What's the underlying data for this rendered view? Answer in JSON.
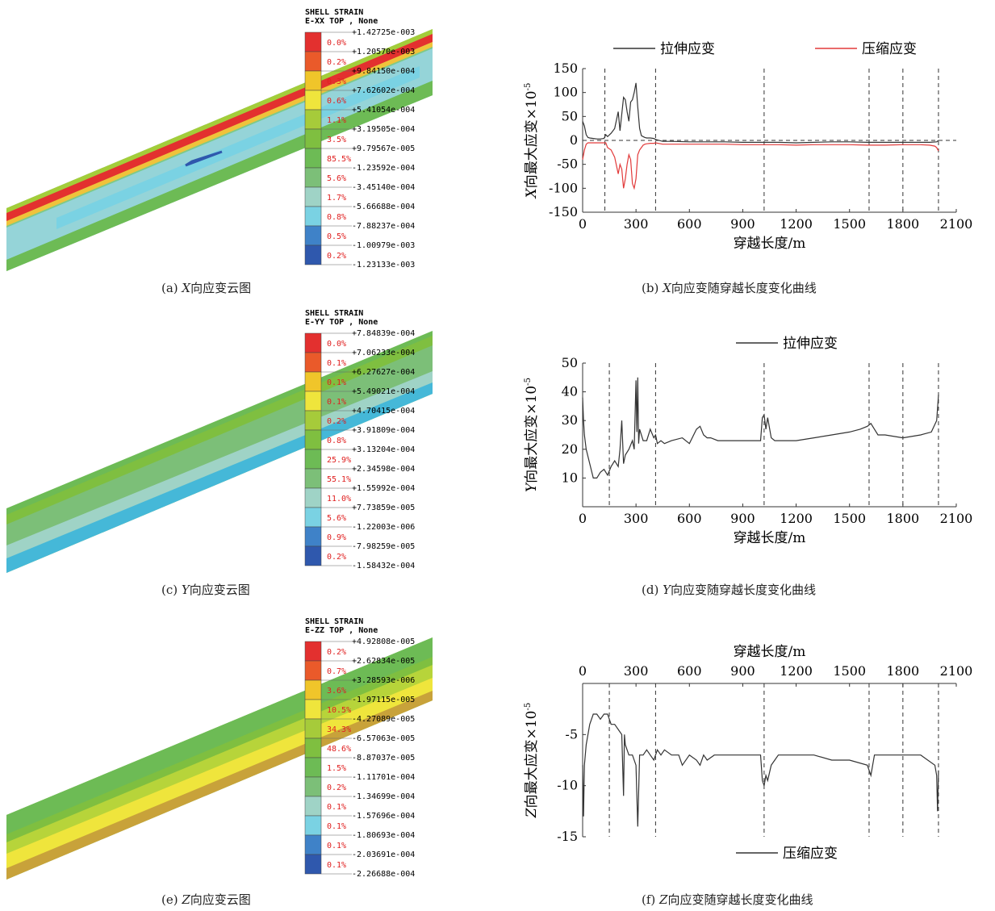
{
  "panels": {
    "a": {
      "header1": "SHELL STRAIN",
      "header2": "E-XX TOP , None",
      "caption_prefix": "(a) ",
      "caption_var": "X",
      "caption_suffix": "向应变云图",
      "colors": [
        "#e3302f",
        "#ea5a2a",
        "#f0c52a",
        "#efe53c",
        "#a6cb3a",
        "#7fbf40",
        "#6dbb55",
        "#7cbf78",
        "#9fd3c6",
        "#7ad2e3",
        "#3f82c8",
        "#2f58ad"
      ],
      "pcts": [
        "0.0%",
        "0.2%",
        "0.3%",
        "0.6%",
        "1.1%",
        "3.5%",
        "85.5%",
        "5.6%",
        "1.7%",
        "0.8%",
        "0.5%",
        "0.2%"
      ],
      "values": [
        "+1.42725e-003",
        "+1.20570e-003",
        "+9.84150e-004",
        "+7.62602e-004",
        "+5.41054e-004",
        "+3.19505e-004",
        "+9.79567e-005",
        "-1.23592e-004",
        "-3.45140e-004",
        "-5.66688e-004",
        "-7.88237e-004",
        "-1.00979e-003",
        "-1.23133e-003"
      ]
    },
    "c": {
      "header1": "SHELL STRAIN",
      "header2": "E-YY TOP , None",
      "caption_prefix": "(c) ",
      "caption_var": "Y",
      "caption_suffix": "向应变云图",
      "colors": [
        "#e3302f",
        "#ea5a2a",
        "#f0c52a",
        "#efe53c",
        "#a6cb3a",
        "#7fbf40",
        "#6dbb55",
        "#7cbf78",
        "#9fd3c6",
        "#7ad2e3",
        "#3f82c8",
        "#2f58ad"
      ],
      "pcts": [
        "0.0%",
        "0.1%",
        "0.1%",
        "0.1%",
        "0.2%",
        "0.8%",
        "25.9%",
        "55.1%",
        "11.0%",
        "5.6%",
        "0.9%",
        "0.2%"
      ],
      "values": [
        "+7.84839e-004",
        "+7.06233e-004",
        "+6.27627e-004",
        "+5.49021e-004",
        "+4.70415e-004",
        "+3.91809e-004",
        "+3.13204e-004",
        "+2.34598e-004",
        "+1.55992e-004",
        "+7.73859e-005",
        "-1.22003e-006",
        "-7.98259e-005",
        "-1.58432e-004"
      ]
    },
    "e": {
      "header1": "SHELL STRAIN",
      "header2": "E-ZZ TOP , None",
      "caption_prefix": "(e) ",
      "caption_var": "Z",
      "caption_suffix": "向应变云图",
      "colors": [
        "#e3302f",
        "#ea5a2a",
        "#f0c52a",
        "#efe53c",
        "#a6cb3a",
        "#7fbf40",
        "#6dbb55",
        "#7cbf78",
        "#9fd3c6",
        "#7ad2e3",
        "#3f82c8",
        "#2f58ad"
      ],
      "pcts": [
        "0.2%",
        "0.7%",
        "3.6%",
        "10.5%",
        "34.3%",
        "48.6%",
        "1.5%",
        "0.2%",
        "0.1%",
        "0.1%",
        "0.1%",
        "0.1%"
      ],
      "values": [
        "+4.92808e-005",
        "+2.62834e-005",
        "+3.28593e-006",
        "-1.97115e-005",
        "-4.27089e-005",
        "-6.57063e-005",
        "-8.87037e-005",
        "-1.11701e-004",
        "-1.34699e-004",
        "-1.57696e-004",
        "-1.80693e-004",
        "-2.03691e-004",
        "-2.26688e-004"
      ]
    }
  },
  "chart_data": [
    {
      "id": "b",
      "type": "line",
      "caption_prefix": "(b) ",
      "caption_var": "X",
      "caption_suffix": "向应变随穿越长度变化曲线",
      "xlabel": "穿越长度/m",
      "ylabel_var": "X",
      "ylabel_text": "向最大应变×10",
      "ylabel_exp": "-5",
      "xlim": [
        0,
        2100
      ],
      "ylim": [
        -150,
        150
      ],
      "xticks": [
        0,
        300,
        600,
        900,
        1200,
        1500,
        1800,
        2100
      ],
      "yticks": [
        -150,
        -100,
        -50,
        0,
        50,
        100,
        150
      ],
      "vlines": [
        125,
        410,
        1020,
        1610,
        1800,
        2000
      ],
      "zero_line": true,
      "legend_position": "top",
      "series": [
        {
          "name": "拉伸应变",
          "color": "#333333",
          "x": [
            0,
            10,
            20,
            30,
            40,
            60,
            80,
            100,
            120,
            130,
            140,
            160,
            180,
            200,
            210,
            220,
            230,
            240,
            250,
            260,
            270,
            280,
            290,
            300,
            310,
            320,
            330,
            340,
            350,
            360,
            380,
            400,
            410,
            450,
            500,
            600,
            700,
            800,
            900,
            1000,
            1100,
            1200,
            1300,
            1400,
            1500,
            1600,
            1700,
            1800,
            1900,
            1950,
            1990,
            2000
          ],
          "y": [
            40,
            30,
            12,
            6,
            5,
            4,
            3,
            3,
            4,
            12,
            8,
            15,
            25,
            60,
            20,
            55,
            90,
            85,
            60,
            40,
            80,
            85,
            100,
            120,
            70,
            25,
            10,
            8,
            6,
            5,
            5,
            4,
            2,
            -2,
            -2,
            -3,
            -3,
            -3,
            -4,
            -4,
            -4,
            -5,
            -4,
            -3,
            -3,
            -4,
            -4,
            -4,
            -4,
            -4,
            -3,
            0
          ]
        },
        {
          "name": "压缩应变",
          "color": "#e23a3a",
          "x": [
            0,
            10,
            20,
            30,
            60,
            100,
            130,
            140,
            160,
            180,
            200,
            210,
            220,
            230,
            240,
            250,
            260,
            270,
            280,
            290,
            300,
            310,
            320,
            330,
            340,
            350,
            360,
            380,
            400,
            410,
            450,
            500,
            600,
            700,
            800,
            900,
            1000,
            1100,
            1200,
            1300,
            1400,
            1500,
            1600,
            1700,
            1800,
            1900,
            1950,
            1980,
            1990,
            2000
          ],
          "y": [
            -40,
            -20,
            -8,
            -5,
            -5,
            -5,
            -5,
            -15,
            -20,
            -35,
            -70,
            -50,
            -60,
            -100,
            -80,
            -50,
            -30,
            -40,
            -90,
            -100,
            -80,
            -30,
            -20,
            -15,
            -10,
            -8,
            -7,
            -6,
            -6,
            -5,
            -8,
            -8,
            -8,
            -8,
            -8,
            -9,
            -9,
            -9,
            -10,
            -9,
            -9,
            -9,
            -10,
            -10,
            -9,
            -9,
            -10,
            -12,
            -15,
            -22
          ]
        }
      ]
    },
    {
      "id": "d",
      "type": "line",
      "caption_prefix": "(d) ",
      "caption_var": "Y",
      "caption_suffix": "向应变随穿越长度变化曲线",
      "xlabel": "穿越长度/m",
      "ylabel_var": "Y",
      "ylabel_text": "向最大应变×10",
      "ylabel_exp": "-5",
      "xlim": [
        0,
        2100
      ],
      "ylim": [
        0,
        50
      ],
      "xticks": [
        0,
        300,
        600,
        900,
        1200,
        1500,
        1800,
        2100
      ],
      "yticks": [
        10,
        20,
        30,
        40,
        50
      ],
      "vlines": [
        150,
        410,
        1020,
        1610,
        1800,
        2000
      ],
      "zero_line": false,
      "legend_position": "top",
      "series": [
        {
          "name": "拉伸应变",
          "color": "#333333",
          "x": [
            0,
            5,
            10,
            20,
            40,
            60,
            80,
            100,
            120,
            140,
            160,
            180,
            200,
            210,
            220,
            230,
            240,
            260,
            280,
            290,
            300,
            305,
            310,
            315,
            320,
            340,
            360,
            380,
            400,
            410,
            420,
            440,
            460,
            500,
            560,
            600,
            640,
            660,
            680,
            700,
            720,
            760,
            800,
            900,
            1000,
            1010,
            1020,
            1030,
            1040,
            1060,
            1080,
            1100,
            1200,
            1300,
            1400,
            1500,
            1560,
            1600,
            1620,
            1640,
            1660,
            1700,
            1800,
            1900,
            1960,
            1990,
            2000
          ],
          "y": [
            38,
            30,
            25,
            20,
            15,
            10,
            10,
            12,
            13,
            11,
            14,
            16,
            14,
            20,
            30,
            15,
            18,
            20,
            23,
            20,
            44,
            26,
            45,
            22,
            27,
            23,
            23,
            27,
            24,
            25,
            22,
            23,
            22,
            23,
            24,
            22,
            27,
            28,
            25,
            24,
            24,
            23,
            23,
            23,
            23,
            31,
            32,
            27,
            31,
            24,
            23,
            23,
            23,
            24,
            25,
            26,
            27,
            28,
            29,
            27,
            25,
            25,
            24,
            25,
            26,
            30,
            39
          ]
        }
      ]
    },
    {
      "id": "f",
      "type": "line",
      "caption_prefix": "(f) ",
      "caption_var": "Z",
      "caption_suffix": "向应变随穿越长度变化曲线",
      "xlabel": "穿越长度/m",
      "ylabel_var": "Z",
      "ylabel_text": "向最大应变×10",
      "ylabel_exp": "-5",
      "xlim": [
        0,
        2100
      ],
      "ylim": [
        -15,
        0
      ],
      "xticks": [
        0,
        300,
        600,
        900,
        1200,
        1500,
        1800,
        2100
      ],
      "yticks": [
        -15,
        -10,
        -5
      ],
      "vlines": [
        150,
        410,
        1020,
        1610,
        1800,
        2000
      ],
      "zero_line": false,
      "legend_position": "bottom",
      "x_axis_top": true,
      "series": [
        {
          "name": "压缩应变",
          "color": "#333333",
          "x": [
            0,
            5,
            10,
            20,
            40,
            60,
            80,
            100,
            120,
            140,
            160,
            180,
            200,
            220,
            230,
            235,
            240,
            260,
            280,
            300,
            310,
            320,
            340,
            360,
            380,
            400,
            420,
            440,
            460,
            500,
            540,
            560,
            600,
            640,
            660,
            680,
            700,
            740,
            800,
            900,
            1000,
            1010,
            1020,
            1030,
            1040,
            1060,
            1080,
            1100,
            1200,
            1300,
            1400,
            1500,
            1600,
            1610,
            1620,
            1640,
            1700,
            1800,
            1900,
            1980,
            1990,
            1995,
            2000
          ],
          "y": [
            -8,
            -13,
            -8,
            -6,
            -4,
            -3,
            -3,
            -3.5,
            -3,
            -3,
            -4,
            -4,
            -4.5,
            -5,
            -11,
            -5,
            -6,
            -7,
            -7,
            -8,
            -14,
            -7,
            -7,
            -6.5,
            -7,
            -7.5,
            -6.5,
            -7,
            -6.5,
            -7,
            -7,
            -8,
            -7,
            -7.5,
            -8,
            -7,
            -7.5,
            -7,
            -7,
            -7,
            -7,
            -9.5,
            -10,
            -9,
            -9.5,
            -8,
            -7.5,
            -7,
            -7,
            -7,
            -7.5,
            -7.5,
            -8,
            -8.5,
            -9,
            -7,
            -7,
            -7,
            -7,
            -8,
            -9,
            -12.5,
            -8.5
          ]
        }
      ]
    }
  ]
}
